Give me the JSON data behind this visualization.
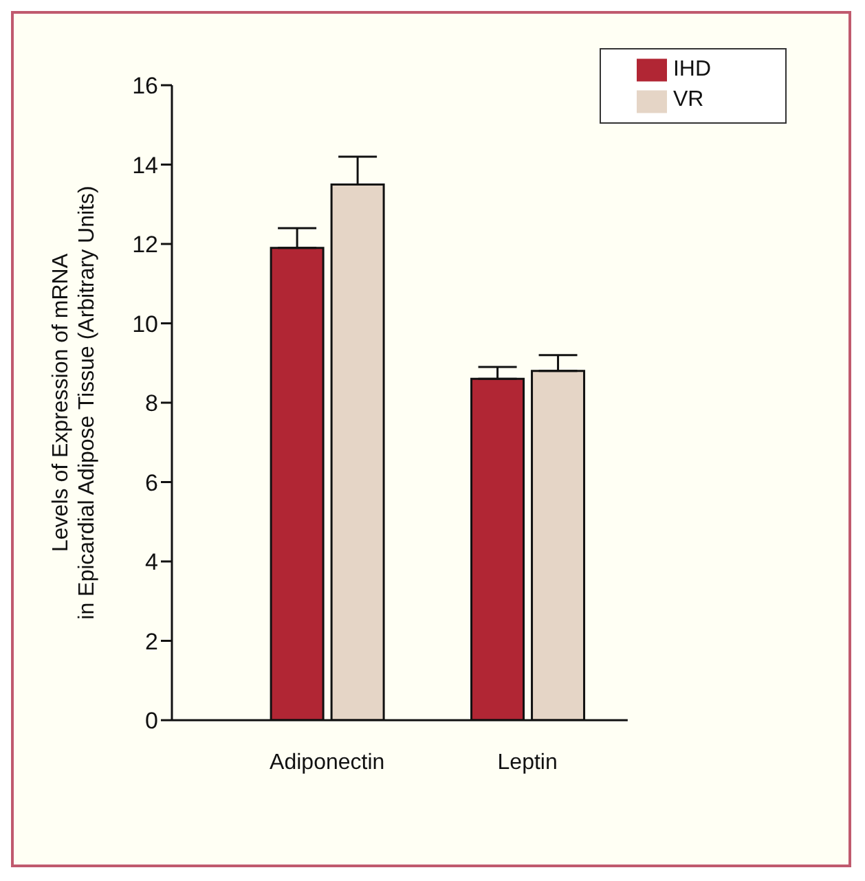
{
  "chart_data": {
    "type": "bar",
    "ylabel": "Levels of Expression of mRNA\nin Epicardial Adipose Tissue (Arbitrary Units)",
    "categories": [
      "Adiponectin",
      "Leptin"
    ],
    "series": [
      {
        "name": "IHD",
        "color": "#b12634",
        "values": [
          11.9,
          8.6
        ],
        "errors": [
          [
            11.9,
            12.4
          ],
          [
            8.6,
            8.9
          ]
        ]
      },
      {
        "name": "VR",
        "color": "#e5d5c6",
        "values": [
          13.5,
          8.8
        ],
        "errors": [
          [
            13.5,
            14.2
          ],
          [
            8.8,
            9.2
          ]
        ]
      }
    ],
    "ylim": [
      0,
      16
    ],
    "yticks": [
      0,
      2,
      4,
      6,
      8,
      10,
      12,
      14,
      16
    ],
    "grid": false,
    "legend": "top right"
  }
}
